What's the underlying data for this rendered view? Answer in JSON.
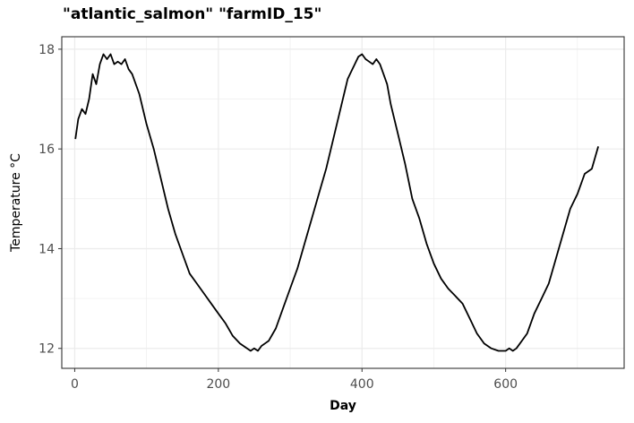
{
  "chart_data": {
    "type": "line",
    "title": "\"atlantic_salmon\" \"farmID_15\"",
    "xlabel": "Day",
    "ylabel": "Temperature °C",
    "xlim": [
      -18,
      765
    ],
    "ylim": [
      11.6,
      18.25
    ],
    "x_ticks": [
      0,
      200,
      400,
      600
    ],
    "x_tick_labels": [
      "0",
      "200",
      "400",
      "600"
    ],
    "y_ticks": [
      12,
      14,
      16,
      18
    ],
    "y_tick_labels": [
      "12",
      "14",
      "16",
      "18"
    ],
    "grid": true,
    "legend": "none",
    "series": [
      {
        "color": "#000000",
        "x": [
          1,
          5,
          10,
          15,
          20,
          25,
          30,
          35,
          40,
          45,
          50,
          55,
          60,
          65,
          70,
          75,
          80,
          90,
          100,
          110,
          120,
          130,
          140,
          150,
          160,
          170,
          180,
          190,
          200,
          210,
          220,
          230,
          240,
          245,
          250,
          255,
          260,
          265,
          270,
          280,
          290,
          300,
          310,
          320,
          330,
          340,
          350,
          360,
          370,
          375,
          380,
          385,
          390,
          395,
          400,
          405,
          410,
          415,
          420,
          425,
          430,
          435,
          440,
          450,
          460,
          470,
          480,
          490,
          500,
          510,
          520,
          530,
          540,
          550,
          560,
          570,
          580,
          590,
          600,
          605,
          610,
          615,
          620,
          630,
          640,
          650,
          660,
          670,
          680,
          690,
          700,
          710,
          720,
          729
        ],
        "values": [
          16.2,
          16.6,
          16.8,
          16.7,
          17.0,
          17.5,
          17.3,
          17.7,
          17.9,
          17.8,
          17.9,
          17.7,
          17.75,
          17.7,
          17.8,
          17.6,
          17.5,
          17.1,
          16.5,
          16.0,
          15.4,
          14.8,
          14.3,
          13.9,
          13.5,
          13.3,
          13.1,
          12.9,
          12.7,
          12.5,
          12.25,
          12.1,
          12.0,
          11.95,
          12.0,
          11.95,
          12.05,
          12.1,
          12.15,
          12.4,
          12.8,
          13.2,
          13.6,
          14.1,
          14.6,
          15.1,
          15.6,
          16.2,
          16.8,
          17.1,
          17.4,
          17.55,
          17.7,
          17.85,
          17.9,
          17.8,
          17.75,
          17.7,
          17.8,
          17.7,
          17.5,
          17.3,
          16.9,
          16.3,
          15.7,
          15.0,
          14.6,
          14.1,
          13.7,
          13.4,
          13.2,
          13.05,
          12.9,
          12.6,
          12.3,
          12.1,
          12.0,
          11.95,
          11.95,
          12.0,
          11.95,
          12.0,
          12.1,
          12.3,
          12.7,
          13.0,
          13.3,
          13.8,
          14.3,
          14.8,
          15.1,
          15.5,
          15.6,
          16.05
        ]
      }
    ]
  }
}
